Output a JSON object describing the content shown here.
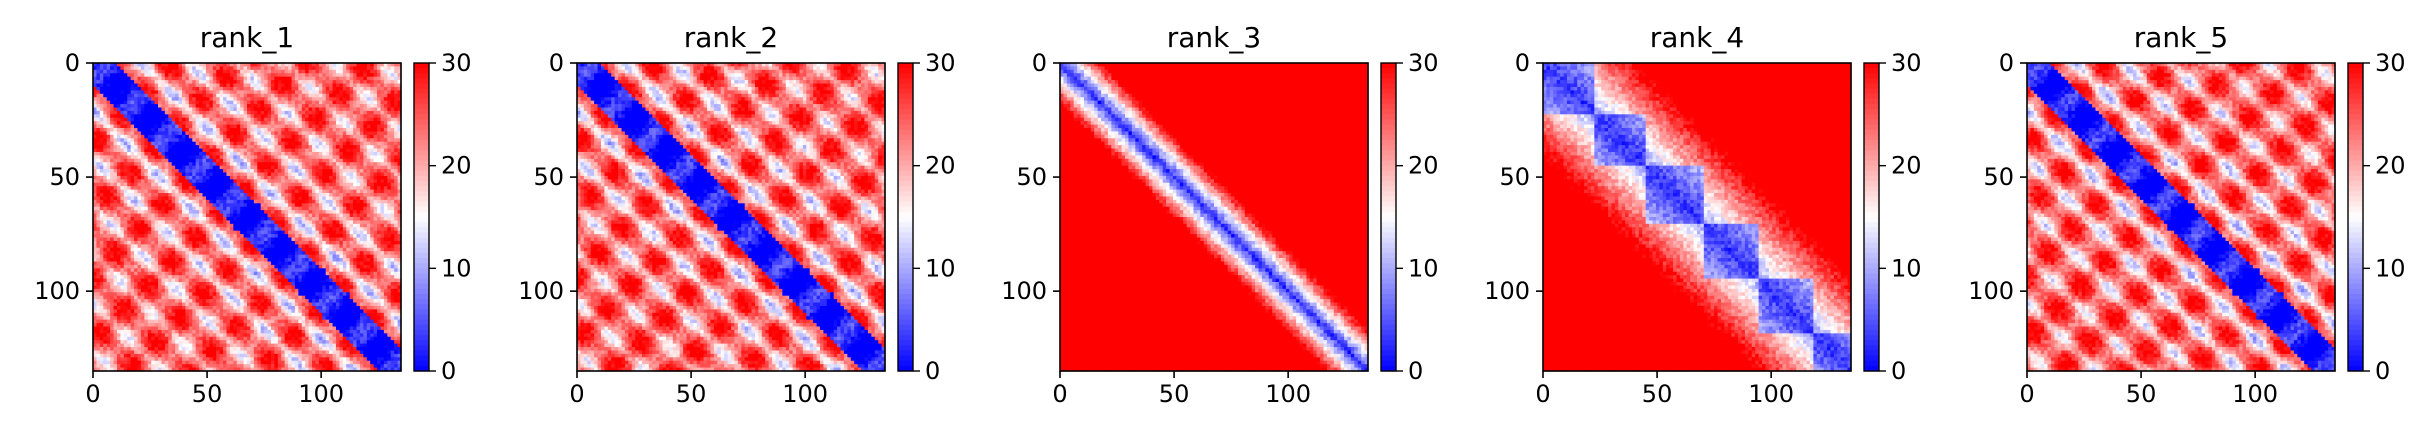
{
  "chart_data": [
    {
      "type": "heatmap",
      "title": "rank_1",
      "pattern": "periodic",
      "xlim": [
        0,
        135
      ],
      "ylim": [
        0,
        135
      ],
      "xticks": [
        0,
        50,
        100
      ],
      "yticks": [
        0,
        50,
        100
      ],
      "colorbar": {
        "min": 0,
        "max": 30,
        "ticks": [
          0,
          10,
          20,
          30
        ]
      },
      "colormap": [
        "#0000ff",
        "#ffffff",
        "#ff0000"
      ]
    },
    {
      "type": "heatmap",
      "title": "rank_2",
      "pattern": "periodic",
      "xlim": [
        0,
        135
      ],
      "ylim": [
        0,
        135
      ],
      "xticks": [
        0,
        50,
        100
      ],
      "yticks": [
        0,
        50,
        100
      ],
      "colorbar": {
        "min": 0,
        "max": 30,
        "ticks": [
          0,
          10,
          20,
          30
        ]
      },
      "colormap": [
        "#0000ff",
        "#ffffff",
        "#ff0000"
      ]
    },
    {
      "type": "heatmap",
      "title": "rank_3",
      "pattern": "diagonal",
      "xlim": [
        0,
        135
      ],
      "ylim": [
        0,
        135
      ],
      "xticks": [
        0,
        50,
        100
      ],
      "yticks": [
        0,
        50,
        100
      ],
      "colorbar": {
        "min": 0,
        "max": 30,
        "ticks": [
          0,
          10,
          20,
          30
        ]
      },
      "colormap": [
        "#0000ff",
        "#ffffff",
        "#ff0000"
      ]
    },
    {
      "type": "heatmap",
      "title": "rank_4",
      "pattern": "block-diagonal",
      "xlim": [
        0,
        135
      ],
      "ylim": [
        0,
        135
      ],
      "xticks": [
        0,
        50,
        100
      ],
      "yticks": [
        0,
        50,
        100
      ],
      "colorbar": {
        "min": 0,
        "max": 30,
        "ticks": [
          0,
          10,
          20,
          30
        ]
      },
      "colormap": [
        "#0000ff",
        "#ffffff",
        "#ff0000"
      ]
    },
    {
      "type": "heatmap",
      "title": "rank_5",
      "pattern": "periodic",
      "xlim": [
        0,
        135
      ],
      "ylim": [
        0,
        135
      ],
      "xticks": [
        0,
        50,
        100
      ],
      "yticks": [
        0,
        50,
        100
      ],
      "colorbar": {
        "min": 0,
        "max": 30,
        "ticks": [
          0,
          10,
          20,
          30
        ]
      },
      "colormap": [
        "#0000ff",
        "#ffffff",
        "#ff0000"
      ]
    }
  ]
}
